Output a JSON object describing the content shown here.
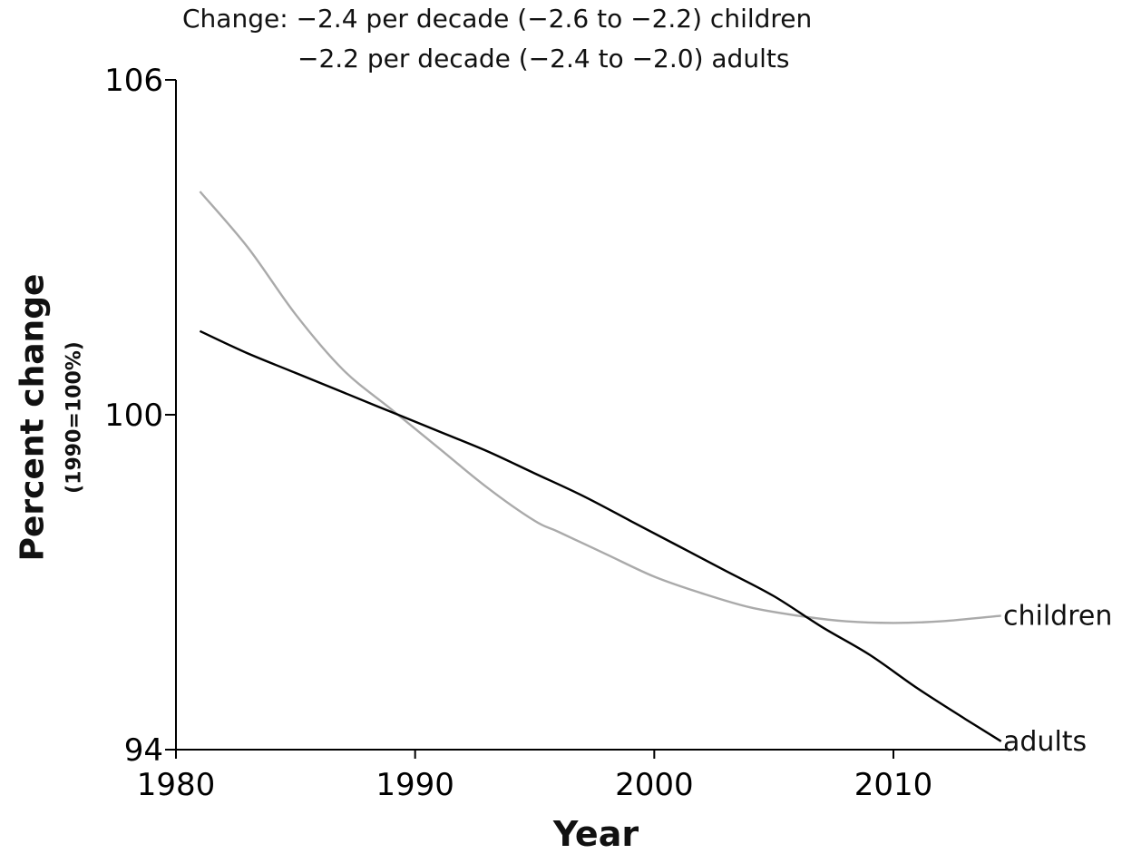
{
  "chart_data": {
    "type": "line",
    "title_lines": [
      "Change: −2.4 per decade (−2.6 to −2.2) children",
      "−2.2 per decade (−2.4 to −2.0) adults"
    ],
    "xlabel": "Year",
    "ylabel": "Percent change",
    "ylabel_sub": "(1990=100%)",
    "xlim": [
      1980,
      2014.8
    ],
    "ylim": [
      94,
      106
    ],
    "xticks": [
      1980,
      1990,
      2000,
      2010
    ],
    "yticks": [
      94,
      100,
      106
    ],
    "grid": false,
    "legend": "inline labels at line ends",
    "series": [
      {
        "name": "children",
        "color": "#aaaaaa",
        "x": [
          1981,
          1983,
          1985,
          1987,
          1989,
          1991,
          1993,
          1995,
          1996,
          1998,
          2000,
          2002,
          2004,
          2006,
          2008,
          2010,
          2012,
          2014.5
        ],
        "y": [
          104.0,
          103.0,
          101.8,
          100.8,
          100.1,
          99.4,
          98.7,
          98.1,
          97.9,
          97.5,
          97.1,
          96.8,
          96.55,
          96.4,
          96.3,
          96.27,
          96.3,
          96.4
        ]
      },
      {
        "name": "adults",
        "color": "#000000",
        "x": [
          1981,
          1983,
          1985,
          1987,
          1989,
          1991,
          1993,
          1995,
          1997,
          1999,
          2001,
          2003,
          2005,
          2007,
          2009,
          2011,
          2013,
          2014.5
        ],
        "y": [
          101.5,
          101.1,
          100.75,
          100.4,
          100.05,
          99.7,
          99.35,
          98.95,
          98.55,
          98.1,
          97.65,
          97.2,
          96.75,
          96.2,
          95.7,
          95.1,
          94.55,
          94.15
        ]
      }
    ]
  }
}
